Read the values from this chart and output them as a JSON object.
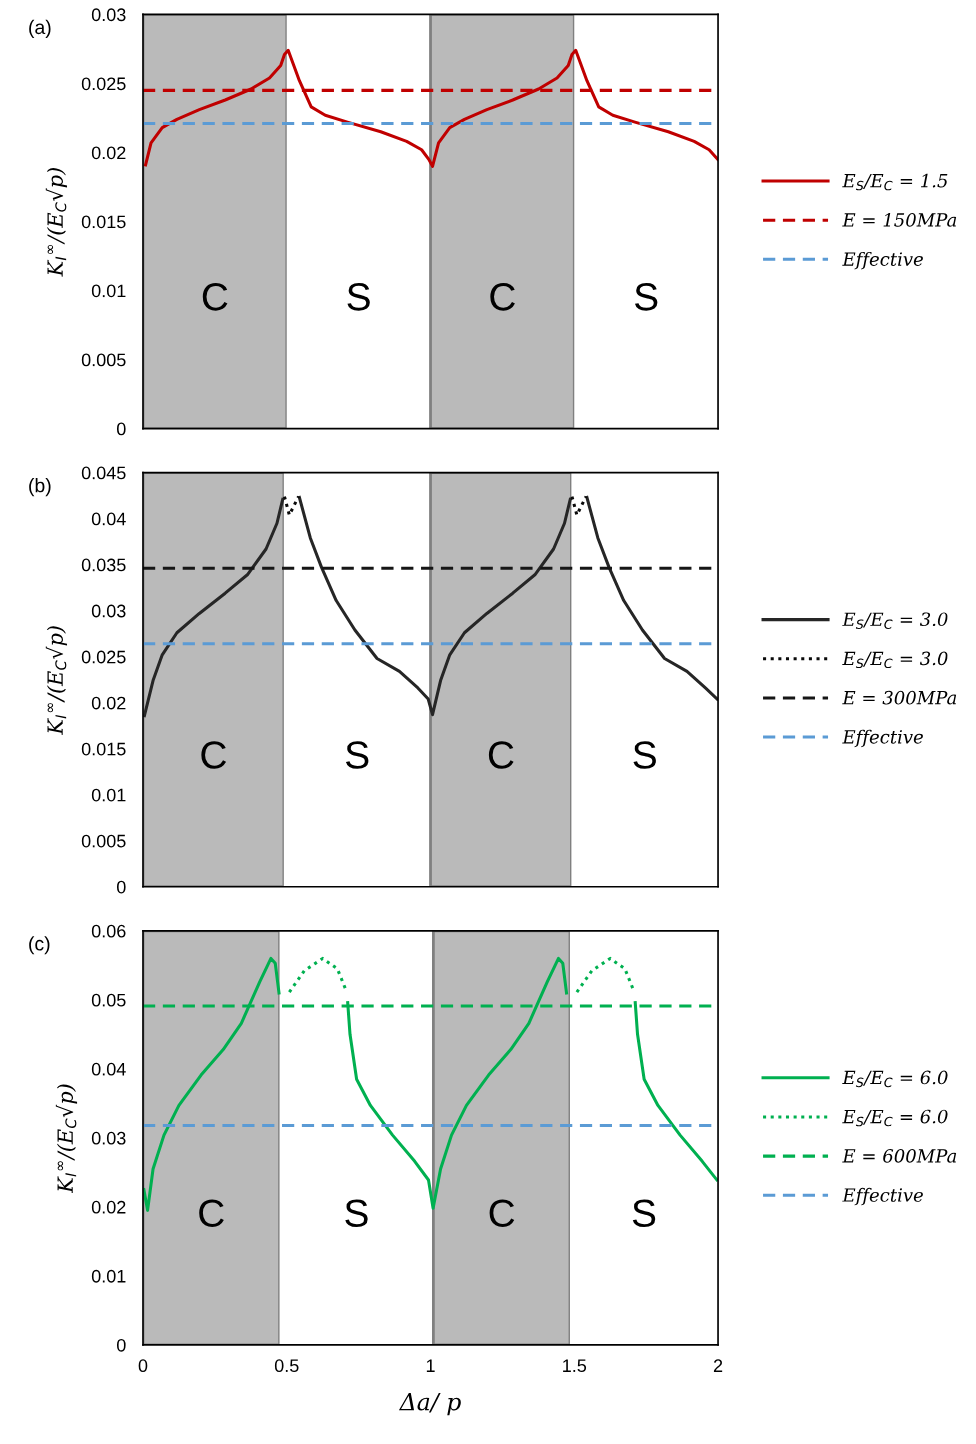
{
  "chart_data": [
    {
      "type": "line",
      "annotations": [
        "(a)"
      ],
      "ylabel": "K$_{I}$$^{∞}$/(E$_{C}$√p)",
      "xlim": [
        0,
        2
      ],
      "xticks": [
        0,
        0.5,
        1,
        1.5,
        2
      ],
      "ylim": [
        0,
        0.03
      ],
      "yticks": [
        0,
        0.005,
        0.01,
        0.015,
        0.02,
        0.025,
        0.03
      ],
      "tick_labels": "y",
      "grid": false,
      "legend": "right",
      "bands": [
        {
          "axis": "x",
          "from": 0,
          "to": 0.5,
          "label": "C",
          "color": "#bababa"
        },
        {
          "axis": "x",
          "from": 0.5,
          "to": 1,
          "label": "S",
          "color": "#ffffff"
        },
        {
          "axis": "x",
          "from": 1,
          "to": 1.5,
          "label": "C",
          "color": "#bababa"
        },
        {
          "axis": "x",
          "from": 1.5,
          "to": 2,
          "label": "S",
          "color": "#ffffff"
        }
      ],
      "series": [
        {
          "name": "E$_{S}$/E$_{C}$ = 1.5",
          "color": "#c00000",
          "line_style": "solid",
          "x": [
            0.009,
            0.028,
            0.067,
            0.118,
            0.196,
            0.286,
            0.376,
            0.44,
            0.479,
            0.492,
            0.505,
            0.544,
            0.585,
            0.634,
            0.711,
            0.827,
            0.917,
            0.969,
            0.994,
            1.007,
            1.028,
            1.067,
            1.118,
            1.196,
            1.286,
            1.376,
            1.44,
            1.479,
            1.492,
            1.505,
            1.544,
            1.585,
            1.634,
            1.711,
            1.827,
            1.917,
            1.969,
            1.999
          ],
          "values": [
            0.0191,
            0.0207,
            0.0218,
            0.0224,
            0.0231,
            0.0238,
            0.0246,
            0.0254,
            0.0263,
            0.0271,
            0.0274,
            0.0252,
            0.0233,
            0.0227,
            0.0222,
            0.0215,
            0.0208,
            0.0202,
            0.0195,
            0.019,
            0.0207,
            0.0218,
            0.0224,
            0.0231,
            0.0238,
            0.0246,
            0.0254,
            0.0263,
            0.0271,
            0.0274,
            0.0252,
            0.0233,
            0.0227,
            0.0222,
            0.0215,
            0.0208,
            0.0202,
            0.0195
          ]
        },
        {
          "name": "E = 150MPa",
          "color": "#c00000",
          "line_style": "dashed",
          "x": [
            0,
            2
          ],
          "values": [
            0.0245,
            0.0245
          ]
        },
        {
          "name": "Effective",
          "color": "#5b9bd5",
          "line_style": "dashed",
          "x": [
            0,
            2
          ],
          "values": [
            0.0221,
            0.0221
          ]
        }
      ]
    },
    {
      "type": "line",
      "annotations": [
        "(b)"
      ],
      "ylabel": "K$_{I}$$^{∞}$/(E$_{C}$√p)",
      "xlim": [
        0,
        2
      ],
      "xticks": [
        0,
        0.5,
        1,
        1.5,
        2
      ],
      "ylim": [
        0,
        0.045
      ],
      "yticks": [
        0,
        0.005,
        0.01,
        0.015,
        0.02,
        0.025,
        0.03,
        0.035,
        0.04,
        0.045
      ],
      "tick_labels": "y",
      "grid": false,
      "legend": "right",
      "bands": [
        {
          "axis": "x",
          "from": 0,
          "to": 0.49,
          "label": "C",
          "color": "#bababa"
        },
        {
          "axis": "x",
          "from": 0.49,
          "to": 1,
          "label": "S",
          "color": "#ffffff"
        },
        {
          "axis": "x",
          "from": 1,
          "to": 1.49,
          "label": "C",
          "color": "#bababa"
        },
        {
          "axis": "x",
          "from": 1.49,
          "to": 2,
          "label": "S",
          "color": "#ffffff"
        }
      ],
      "series": [
        {
          "name": "E$_{S}$/E$_{C}$ = 3.0",
          "color": "#262626",
          "line_style": "solid",
          "x": [
            0.005,
            0.035,
            0.067,
            0.118,
            0.196,
            0.286,
            0.363,
            0.428,
            0.466,
            0.486,
            0.515,
            0.544,
            0.582,
            0.621,
            0.672,
            0.737,
            0.814,
            0.892,
            0.956,
            0.992,
            1.007,
            1.035,
            1.067,
            1.118,
            1.196,
            1.286,
            1.363,
            1.428,
            1.466,
            1.486,
            1.515,
            1.544,
            1.582,
            1.621,
            1.672,
            1.737,
            1.814,
            1.892,
            1.956,
            1.997
          ],
          "values": [
            0.0186,
            0.0224,
            0.0252,
            0.0276,
            0.0297,
            0.0319,
            0.0339,
            0.0367,
            0.0395,
            0.0421,
            null,
            0.0423,
            0.0379,
            0.0347,
            0.0311,
            0.0279,
            0.0248,
            0.0234,
            0.0216,
            0.0204,
            0.0187,
            0.0224,
            0.0252,
            0.0276,
            0.0297,
            0.0319,
            0.0339,
            0.0367,
            0.0395,
            0.0421,
            null,
            0.0423,
            0.0379,
            0.0347,
            0.0311,
            0.0279,
            0.0248,
            0.0234,
            0.0216,
            0.0204
          ]
        },
        {
          "name": "E$_{S}$/E$_{C}$ = 3.0",
          "color": "#0a0a0a",
          "line_style": "dotted",
          "x": [
            0.492,
            0.509,
            0.541,
            1.0,
            1.492,
            1.509,
            1.541
          ],
          "values": [
            0.0424,
            0.0404,
            0.0424,
            null,
            0.0424,
            0.0404,
            0.0424
          ]
        },
        {
          "name": "E = 300MPa",
          "color": "#161616",
          "line_style": "dashed",
          "x": [
            0,
            2
          ],
          "values": [
            0.0346,
            0.0346
          ]
        },
        {
          "name": "Effective",
          "color": "#5b9bd5",
          "line_style": "dashed",
          "x": [
            0,
            2
          ],
          "values": [
            0.0264,
            0.0264
          ]
        }
      ]
    },
    {
      "type": "line",
      "annotations": [
        "(c)"
      ],
      "ylabel": "K$_{I}$$^{∞}$/(E$_{C}$√p)",
      "xlabel": "Δa/ p",
      "xlim": [
        0,
        2
      ],
      "xticks": [
        0,
        0.5,
        1,
        1.5,
        2
      ],
      "ylim": [
        0,
        0.06
      ],
      "yticks": [
        0,
        0.01,
        0.02,
        0.03,
        0.04,
        0.05,
        0.06
      ],
      "grid": false,
      "legend": "right",
      "bands": [
        {
          "axis": "x",
          "from": 0,
          "to": 0.475,
          "label": "C",
          "color": "#bababa"
        },
        {
          "axis": "x",
          "from": 0.475,
          "to": 1.01,
          "label": "S",
          "color": "#ffffff"
        },
        {
          "axis": "x",
          "from": 1.01,
          "to": 1.485,
          "label": "C",
          "color": "#bababa"
        },
        {
          "axis": "x",
          "from": 1.485,
          "to": 2,
          "label": "S",
          "color": "#ffffff"
        }
      ],
      "series": [
        {
          "name": "E$_{S}$/E$_{C}$ = 6.0",
          "color": "#00b050",
          "line_style": "solid",
          "x": [
            0.003,
            0.016,
            0.035,
            0.073,
            0.125,
            0.202,
            0.279,
            0.342,
            0.406,
            0.445,
            0.46,
            0.473,
            0.6,
            0.712,
            0.72,
            0.743,
            0.791,
            0.868,
            0.945,
            0.993,
            1.009,
            1.035,
            1.073,
            1.125,
            1.202,
            1.279,
            1.342,
            1.406,
            1.445,
            1.46,
            1.473,
            1.6,
            1.712,
            1.72,
            1.743,
            1.791,
            1.868,
            1.945,
            1.996
          ],
          "values": [
            0.0225,
            0.0195,
            0.0255,
            0.0304,
            0.0347,
            0.0391,
            0.0428,
            0.0466,
            0.0526,
            0.056,
            0.0553,
            0.051,
            null,
            0.0496,
            0.045,
            0.0385,
            0.0347,
            0.0304,
            0.0266,
            0.0239,
            0.0198,
            0.0255,
            0.0304,
            0.0347,
            0.0391,
            0.0428,
            0.0466,
            0.0526,
            0.056,
            0.0553,
            0.051,
            null,
            0.0496,
            0.045,
            0.0385,
            0.0347,
            0.0304,
            0.0266,
            0.0239
          ]
        },
        {
          "name": "E$_{S}$/E$_{C}$ = 6.0",
          "color": "#00b050",
          "line_style": "dotted",
          "x": [
            0.509,
            0.561,
            0.625,
            0.676,
            0.708,
            1.2,
            1.509,
            1.561,
            1.625,
            1.676,
            1.708
          ],
          "values": [
            0.0511,
            0.0542,
            0.056,
            0.0545,
            0.0512,
            null,
            0.0511,
            0.0542,
            0.056,
            0.0545,
            0.0512
          ]
        },
        {
          "name": "E = 600MPa",
          "color": "#00b050",
          "line_style": "dashed",
          "x": [
            0,
            2
          ],
          "values": [
            0.0491,
            0.0491
          ]
        },
        {
          "name": "Effective",
          "color": "#5b9bd5",
          "line_style": "dashed",
          "x": [
            0,
            2
          ],
          "values": [
            0.0318,
            0.0318
          ]
        }
      ]
    }
  ]
}
